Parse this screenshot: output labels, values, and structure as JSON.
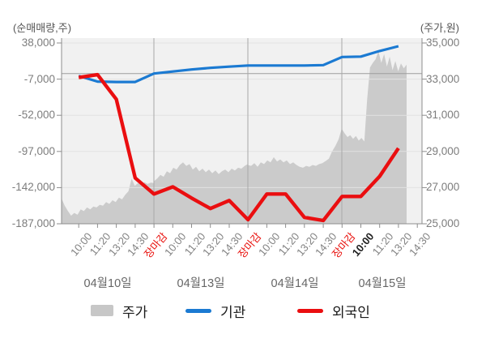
{
  "header": {
    "left_axis_title": "(순매매량,주)",
    "right_axis_title": "(주가,원)"
  },
  "axes": {
    "left": {
      "tick_labels": [
        "38,000",
        "-7,000",
        "-52,000",
        "-97,000",
        "-142,000",
        "-187,000"
      ],
      "tick_values": [
        38000,
        -7000,
        -52000,
        -97000,
        -142000,
        -187000
      ]
    },
    "right": {
      "tick_labels": [
        "35,000",
        "33,000",
        "31,000",
        "29,000",
        "27,000",
        "25,000"
      ],
      "tick_values": [
        35000,
        33000,
        31000,
        29000,
        27000,
        25000
      ]
    },
    "x": {
      "tick_labels": [
        {
          "text": "10:00",
          "style": "time"
        },
        {
          "text": "11:20",
          "style": "time"
        },
        {
          "text": "13:20",
          "style": "time"
        },
        {
          "text": "14:30",
          "style": "time"
        },
        {
          "text": "장마감",
          "style": "close"
        },
        {
          "text": "10:00",
          "style": "time"
        },
        {
          "text": "11:20",
          "style": "time"
        },
        {
          "text": "13:20",
          "style": "time"
        },
        {
          "text": "14:30",
          "style": "time"
        },
        {
          "text": "장마감",
          "style": "close"
        },
        {
          "text": "10:00",
          "style": "time"
        },
        {
          "text": "11:20",
          "style": "time"
        },
        {
          "text": "13:20",
          "style": "time"
        },
        {
          "text": "14:30",
          "style": "time"
        },
        {
          "text": "장마감",
          "style": "close"
        },
        {
          "text": "10:00",
          "style": "strong"
        },
        {
          "text": "11:20",
          "style": "time"
        },
        {
          "text": "13:20",
          "style": "time"
        },
        {
          "text": "14:30",
          "style": "time"
        }
      ],
      "date_labels": [
        "04월10일",
        "04월13일",
        "04월14일",
        "04월15일"
      ]
    }
  },
  "legend": [
    {
      "label": "주가",
      "swatch": "area",
      "color": "#c7c7c7"
    },
    {
      "label": "기관",
      "swatch": "line",
      "color": "#1b7ad2"
    },
    {
      "label": "외국인",
      "swatch": "line",
      "color": "#ea0e10"
    }
  ],
  "colors": {
    "plot_bg": "#f1f1f1",
    "area_fill": "#cbcbcb",
    "grid": "#e2e2e2",
    "zero_line": "#9e9e9e",
    "separator": "#a8a8a8",
    "axis": "#8d8d8d",
    "institution": "#1b7ad2",
    "foreigner": "#ea0e10",
    "close_label": "#e8100c"
  },
  "chart_data": {
    "type": "mixed",
    "title": "",
    "left_axis": {
      "label": "(순매매량,주)",
      "range": [
        -187000,
        38000
      ],
      "unit": "주"
    },
    "right_axis": {
      "label": "(주가,원)",
      "range": [
        25000,
        35000
      ],
      "unit": "원"
    },
    "days": [
      {
        "date": "04월10일",
        "ticks": [
          "10:00",
          "11:20",
          "13:20",
          "14:30",
          "장마감"
        ]
      },
      {
        "date": "04월13일",
        "ticks": [
          "10:00",
          "11:20",
          "13:20",
          "14:30",
          "장마감"
        ]
      },
      {
        "date": "04월14일",
        "ticks": [
          "10:00",
          "11:20",
          "13:20",
          "14:30",
          "장마감"
        ]
      },
      {
        "date": "04월15일",
        "ticks": [
          "10:00",
          "11:20",
          "13:20",
          "14:30"
        ]
      }
    ],
    "series": [
      {
        "name": "주가",
        "type": "area",
        "axis": "right",
        "color": "#cbcbcb",
        "values_by_day": [
          [
            26400,
            26000,
            25700,
            25450,
            25600,
            25500,
            25800,
            25700,
            25900,
            25800,
            25950,
            25900,
            26050,
            26000,
            26200,
            26100,
            26300,
            26200,
            26450,
            26350,
            26600,
            26800,
            27500,
            27100,
            27250,
            27150,
            27300,
            27200,
            27280,
            27250
          ],
          [
            27350,
            27500,
            27700,
            27600,
            27900,
            27800,
            28100,
            28000,
            28250,
            28400,
            28200,
            28300,
            28000,
            28150,
            27900,
            28050,
            27850,
            28000,
            27800,
            27950,
            27750,
            27900,
            28000,
            27850,
            28050,
            27950,
            28100,
            28050,
            28200,
            28300
          ],
          [
            28250,
            28200,
            28350,
            28150,
            28400,
            28300,
            28500,
            28400,
            28680,
            28450,
            28560,
            28400,
            28500,
            28300,
            28400,
            28250,
            28150,
            28100,
            28200,
            28150,
            28250,
            28200,
            28300,
            28350,
            28470,
            28600,
            29000,
            29300,
            29670,
            30280
          ],
          [
            30250,
            30000,
            29800,
            29900,
            29700,
            29850,
            29600,
            29750,
            29550,
            31900,
            33640,
            33900,
            34100,
            34540,
            33900,
            34380,
            33700,
            34240,
            33500,
            34000,
            33430,
            33870,
            33600,
            33800
          ]
        ]
      },
      {
        "name": "기관",
        "type": "line",
        "axis": "left",
        "color": "#1b7ad2",
        "values": [
          -3000,
          -10000,
          -10500,
          -10500,
          0,
          2500,
          5000,
          7000,
          8500,
          10000,
          10000,
          10000,
          10000,
          10500,
          20500,
          21000,
          28000,
          34000
        ]
      },
      {
        "name": "외국인",
        "type": "line",
        "axis": "left",
        "color": "#ea0e10",
        "values": [
          -5000,
          -1500,
          -32000,
          -130000,
          -150000,
          -141000,
          -155000,
          -168000,
          -158000,
          -182000,
          -150000,
          -150000,
          -179000,
          -183000,
          -153000,
          -153000,
          -128000,
          -93000
        ]
      }
    ]
  }
}
